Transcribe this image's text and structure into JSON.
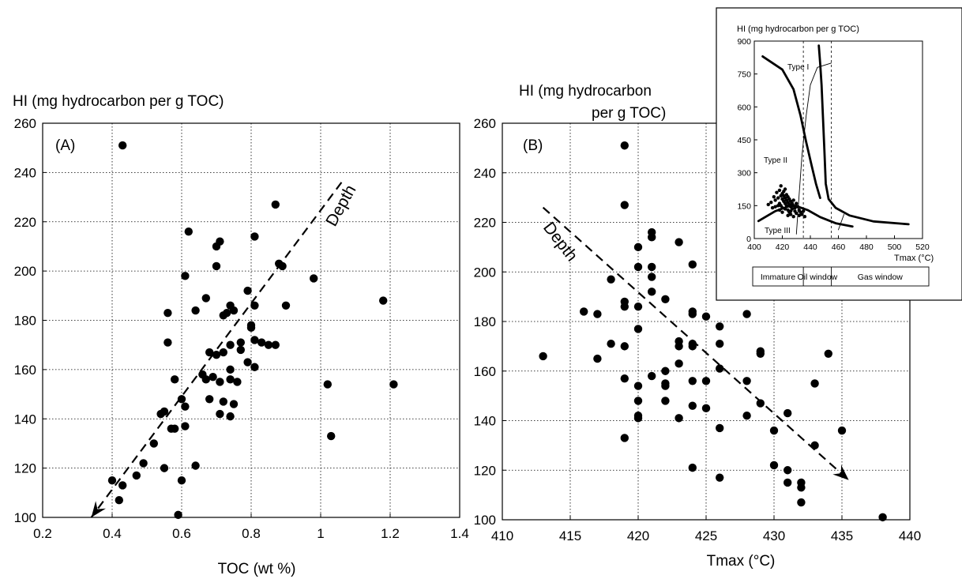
{
  "chart_data": [
    {
      "type": "scatter",
      "panel_label": "(A)",
      "ylabel": "HI (mg hydrocarbon per g TOC)",
      "xlabel": "TOC (wt %)",
      "xlim": [
        0.2,
        1.4
      ],
      "ylim": [
        100,
        260
      ],
      "xticks": [
        "0.2",
        "0.4",
        "0.6",
        "0.8",
        "1",
        "1.2",
        "1.4"
      ],
      "yticks": [
        "100",
        "120",
        "140",
        "160",
        "180",
        "200",
        "220",
        "240",
        "260"
      ],
      "grid": true,
      "annotation": "Depth",
      "arrow": {
        "from": [
          1.06,
          236
        ],
        "to": [
          0.34,
          100
        ]
      },
      "points": [
        [
          0.43,
          251
        ],
        [
          0.87,
          227
        ],
        [
          0.62,
          216
        ],
        [
          0.71,
          212
        ],
        [
          0.7,
          210
        ],
        [
          0.81,
          214
        ],
        [
          0.88,
          203
        ],
        [
          0.89,
          202
        ],
        [
          0.7,
          202
        ],
        [
          0.61,
          198
        ],
        [
          0.98,
          197
        ],
        [
          0.79,
          192
        ],
        [
          0.67,
          189
        ],
        [
          0.74,
          186
        ],
        [
          0.81,
          186
        ],
        [
          0.9,
          186
        ],
        [
          1.18,
          188
        ],
        [
          0.56,
          183
        ],
        [
          0.64,
          184
        ],
        [
          0.73,
          183
        ],
        [
          0.75,
          184
        ],
        [
          0.72,
          182
        ],
        [
          0.8,
          178
        ],
        [
          0.8,
          177
        ],
        [
          0.81,
          172
        ],
        [
          0.83,
          171
        ],
        [
          0.85,
          170
        ],
        [
          0.87,
          170
        ],
        [
          0.74,
          170
        ],
        [
          0.77,
          171
        ],
        [
          0.56,
          171
        ],
        [
          0.68,
          167
        ],
        [
          0.7,
          166
        ],
        [
          0.72,
          167
        ],
        [
          0.77,
          168
        ],
        [
          0.79,
          163
        ],
        [
          0.74,
          160
        ],
        [
          0.81,
          161
        ],
        [
          0.66,
          158
        ],
        [
          0.69,
          157
        ],
        [
          0.67,
          156
        ],
        [
          0.71,
          155
        ],
        [
          0.74,
          156
        ],
        [
          0.76,
          155
        ],
        [
          0.58,
          156
        ],
        [
          0.6,
          148
        ],
        [
          0.61,
          145
        ],
        [
          0.68,
          148
        ],
        [
          0.72,
          147
        ],
        [
          0.75,
          146
        ],
        [
          0.54,
          142
        ],
        [
          0.55,
          143
        ],
        [
          0.71,
          142
        ],
        [
          0.74,
          141
        ],
        [
          0.57,
          136
        ],
        [
          0.58,
          136
        ],
        [
          0.61,
          137
        ],
        [
          1.02,
          154
        ],
        [
          1.21,
          154
        ],
        [
          1.03,
          133
        ],
        [
          0.52,
          130
        ],
        [
          0.49,
          122
        ],
        [
          0.55,
          120
        ],
        [
          0.64,
          121
        ],
        [
          0.47,
          117
        ],
        [
          0.4,
          115
        ],
        [
          0.43,
          113
        ],
        [
          0.6,
          115
        ],
        [
          0.42,
          107
        ],
        [
          0.59,
          101
        ]
      ]
    },
    {
      "type": "scatter",
      "panel_label": "(B)",
      "ylabel": "HI (mg hydrocarbon per g TOC)",
      "xlabel": "Tmax (°C)",
      "xlim": [
        410,
        440
      ],
      "ylim": [
        100,
        260
      ],
      "xticks": [
        "410",
        "415",
        "420",
        "425",
        "430",
        "435",
        "440"
      ],
      "yticks": [
        "100",
        "120",
        "140",
        "160",
        "180",
        "200",
        "220",
        "240",
        "260"
      ],
      "grid": true,
      "annotation": "Depth",
      "arrow": {
        "from": [
          413,
          226
        ],
        "to": [
          435.5,
          116
        ]
      },
      "points": [
        [
          419,
          251
        ],
        [
          419,
          227
        ],
        [
          421,
          216
        ],
        [
          421,
          214
        ],
        [
          423,
          212
        ],
        [
          420,
          210
        ],
        [
          420,
          202
        ],
        [
          421,
          202
        ],
        [
          424,
          203
        ],
        [
          418,
          197
        ],
        [
          421,
          198
        ],
        [
          421,
          192
        ],
        [
          422,
          189
        ],
        [
          416,
          184
        ],
        [
          417,
          183
        ],
        [
          419,
          188
        ],
        [
          419,
          186
        ],
        [
          420,
          186
        ],
        [
          424,
          184
        ],
        [
          424,
          183
        ],
        [
          425,
          182
        ],
        [
          428,
          183
        ],
        [
          426,
          178
        ],
        [
          420,
          177
        ],
        [
          418,
          171
        ],
        [
          419,
          170
        ],
        [
          423,
          172
        ],
        [
          423,
          170
        ],
        [
          424,
          171
        ],
        [
          424,
          170
        ],
        [
          426,
          171
        ],
        [
          429,
          168
        ],
        [
          429,
          167
        ],
        [
          434,
          167
        ],
        [
          413,
          166
        ],
        [
          417,
          165
        ],
        [
          422,
          160
        ],
        [
          423,
          163
        ],
        [
          426,
          161
        ],
        [
          419,
          157
        ],
        [
          421,
          158
        ],
        [
          422,
          155
        ],
        [
          422,
          154
        ],
        [
          424,
          156
        ],
        [
          425,
          156
        ],
        [
          428,
          156
        ],
        [
          433,
          155
        ],
        [
          420,
          154
        ],
        [
          420,
          148
        ],
        [
          422,
          148
        ],
        [
          424,
          146
        ],
        [
          425,
          145
        ],
        [
          429,
          147
        ],
        [
          420,
          142
        ],
        [
          420,
          141
        ],
        [
          423,
          141
        ],
        [
          426,
          137
        ],
        [
          428,
          142
        ],
        [
          430,
          136
        ],
        [
          431,
          143
        ],
        [
          419,
          133
        ],
        [
          433,
          130
        ],
        [
          435,
          136
        ],
        [
          430,
          122
        ],
        [
          431,
          120
        ],
        [
          424,
          121
        ],
        [
          426,
          117
        ],
        [
          431,
          115
        ],
        [
          432,
          115
        ],
        [
          432,
          113
        ],
        [
          432,
          107
        ],
        [
          438,
          101
        ]
      ]
    },
    {
      "type": "scatter",
      "role": "inset",
      "ylabel": "HI (mg hydrocarbon per g TOC)",
      "xlabel": "Tmax (°C)",
      "xlim": [
        400,
        520
      ],
      "ylim": [
        0,
        900
      ],
      "xticks": [
        "400",
        "420",
        "440",
        "460",
        "480",
        "500",
        "520"
      ],
      "yticks": [
        "0",
        "150",
        "300",
        "450",
        "600",
        "750",
        "900"
      ],
      "type_labels": [
        "Type I",
        "Type II",
        "Type III"
      ],
      "maturity_zones": [
        "Immature",
        "Oil window",
        "Gas window"
      ],
      "maturity_boundaries": [
        400,
        435,
        455,
        520
      ],
      "curves": {
        "type_i": [
          [
            446,
            880
          ],
          [
            447,
            800
          ],
          [
            448,
            700
          ],
          [
            449,
            550
          ],
          [
            450,
            400
          ],
          [
            451,
            250
          ],
          [
            453,
            180
          ],
          [
            458,
            140
          ],
          [
            468,
            105
          ],
          [
            485,
            78
          ],
          [
            510,
            65
          ]
        ],
        "type_ii": [
          [
            406,
            830
          ],
          [
            420,
            770
          ],
          [
            428,
            680
          ],
          [
            433,
            560
          ],
          [
            437,
            440
          ],
          [
            441,
            330
          ],
          [
            444,
            250
          ],
          [
            447,
            185
          ]
        ],
        "type_iii": [
          [
            403,
            80
          ],
          [
            415,
            125
          ],
          [
            425,
            148
          ],
          [
            430,
            148
          ],
          [
            438,
            130
          ],
          [
            447,
            98
          ],
          [
            458,
            70
          ],
          [
            470,
            55
          ]
        ],
        "vitrinite_line": [
          [
            430,
            20
          ],
          [
            432,
            200
          ],
          [
            434,
            380
          ],
          [
            437,
            560
          ],
          [
            440,
            700
          ],
          [
            445,
            780
          ],
          [
            455,
            800
          ]
        ],
        "small_line": [
          [
            460,
            40
          ],
          [
            464,
            110
          ]
        ]
      },
      "points": [
        [
          412,
          165
        ],
        [
          414,
          190
        ],
        [
          415,
          175
        ],
        [
          416,
          210
        ],
        [
          417,
          185
        ],
        [
          418,
          220
        ],
        [
          418,
          160
        ],
        [
          419,
          195
        ],
        [
          419,
          240
        ],
        [
          419,
          150
        ],
        [
          420,
          180
        ],
        [
          420,
          205
        ],
        [
          420,
          140
        ],
        [
          421,
          170
        ],
        [
          421,
          215
        ],
        [
          421,
          195
        ],
        [
          422,
          160
        ],
        [
          422,
          185
        ],
        [
          422,
          225
        ],
        [
          423,
          150
        ],
        [
          423,
          175
        ],
        [
          423,
          200
        ],
        [
          424,
          165
        ],
        [
          424,
          190
        ],
        [
          424,
          130
        ],
        [
          425,
          155
        ],
        [
          425,
          180
        ],
        [
          425,
          120
        ],
        [
          426,
          170
        ],
        [
          426,
          145
        ],
        [
          426,
          110
        ],
        [
          427,
          160
        ],
        [
          427,
          135
        ],
        [
          428,
          175
        ],
        [
          428,
          150
        ],
        [
          429,
          140
        ],
        [
          429,
          125
        ],
        [
          430,
          160
        ],
        [
          430,
          115
        ],
        [
          431,
          145
        ],
        [
          432,
          130
        ],
        [
          432,
          105
        ],
        [
          433,
          120
        ],
        [
          434,
          110
        ],
        [
          435,
          125
        ],
        [
          436,
          100
        ],
        [
          418,
          130
        ],
        [
          420,
          120
        ],
        [
          415,
          145
        ],
        [
          417,
          150
        ],
        [
          422,
          135
        ],
        [
          424,
          105
        ],
        [
          426,
          125
        ],
        [
          428,
          100
        ],
        [
          410,
          155
        ],
        [
          413,
          140
        ]
      ]
    }
  ]
}
